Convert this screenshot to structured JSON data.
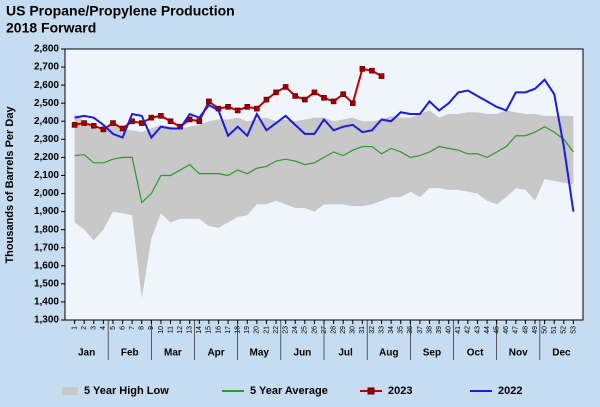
{
  "chart_data": {
    "type": "line",
    "title": "US Propane/Propylene Production",
    "subtitle": "2018 Forward",
    "y_label": "Thousands of Barrels Per Day",
    "months": [
      "Jan",
      "Feb",
      "Mar",
      "Apr",
      "May",
      "Jun",
      "Jul",
      "Aug",
      "Sep",
      "Oct",
      "Nov",
      "Dec"
    ],
    "x": [
      1,
      2,
      3,
      4,
      5,
      6,
      7,
      8,
      9,
      10,
      11,
      12,
      13,
      14,
      15,
      16,
      17,
      18,
      19,
      20,
      21,
      22,
      23,
      24,
      25,
      26,
      27,
      28,
      29,
      30,
      31,
      32,
      33,
      34,
      35,
      36,
      37,
      38,
      39,
      40,
      41,
      42,
      43,
      44,
      45,
      46,
      47,
      48,
      49,
      50,
      51,
      52,
      53
    ],
    "xlim": [
      0,
      54
    ],
    "ylim": [
      1300,
      2800
    ],
    "yticks": [
      {
        "value": 1300,
        "label": "1,300"
      },
      {
        "value": 1400,
        "label": "1,400"
      },
      {
        "value": 1500,
        "label": "1,500"
      },
      {
        "value": 1600,
        "label": "1,600"
      },
      {
        "value": 1700,
        "label": "1,700"
      },
      {
        "value": 1800,
        "label": "1,800"
      },
      {
        "value": 1900,
        "label": "1,900"
      },
      {
        "value": 2000,
        "label": "2,000"
      },
      {
        "value": 2100,
        "label": "2,100"
      },
      {
        "value": 2200,
        "label": "2,200"
      },
      {
        "value": 2300,
        "label": "2,300"
      },
      {
        "value": 2400,
        "label": "2,400"
      },
      {
        "value": 2500,
        "label": "2,500"
      },
      {
        "value": 2600,
        "label": "2,600"
      },
      {
        "value": 2700,
        "label": "2,700"
      },
      {
        "value": 2800,
        "label": "2,800"
      }
    ],
    "band": {
      "name": "5 Year High Low",
      "color": "#c8c8c8",
      "high": [
        2440,
        2400,
        2360,
        2350,
        2390,
        2350,
        2350,
        2340,
        2360,
        2380,
        2370,
        2360,
        2370,
        2380,
        2400,
        2410,
        2410,
        2420,
        2400,
        2410,
        2420,
        2400,
        2410,
        2400,
        2410,
        2420,
        2420,
        2400,
        2410,
        2420,
        2400,
        2400,
        2410,
        2430,
        2420,
        2420,
        2440,
        2460,
        2420,
        2440,
        2440,
        2450,
        2450,
        2440,
        2440,
        2460,
        2450,
        2440,
        2440,
        2430,
        2430,
        2430,
        2430
      ],
      "low": [
        1840,
        1800,
        1740,
        1800,
        1900,
        1890,
        1880,
        1420,
        1750,
        1890,
        1840,
        1860,
        1860,
        1860,
        1820,
        1810,
        1840,
        1870,
        1880,
        1940,
        1940,
        1960,
        1940,
        1920,
        1920,
        1900,
        1940,
        1940,
        1940,
        1930,
        1930,
        1940,
        1960,
        1980,
        1980,
        2010,
        1980,
        2030,
        2030,
        2020,
        2020,
        2010,
        2000,
        1960,
        1940,
        1980,
        2030,
        2020,
        1960,
        2080,
        2070,
        2060,
        2050
      ]
    },
    "series": [
      {
        "name": "5 Year Average",
        "color": "#2e9a2e",
        "values": [
          2210,
          2215,
          2170,
          2170,
          2190,
          2200,
          2200,
          1950,
          2000,
          2100,
          2100,
          2130,
          2160,
          2110,
          2110,
          2110,
          2100,
          2130,
          2110,
          2140,
          2150,
          2180,
          2190,
          2180,
          2160,
          2170,
          2200,
          2230,
          2210,
          2240,
          2260,
          2260,
          2220,
          2250,
          2230,
          2200,
          2210,
          2230,
          2260,
          2250,
          2240,
          2220,
          2220,
          2200,
          2230,
          2260,
          2320,
          2320,
          2340,
          2370,
          2340,
          2300,
          2230
        ]
      },
      {
        "name": "2023",
        "color": "#c00000",
        "marker": "square",
        "values": [
          2380,
          2390,
          2375,
          2355,
          2390,
          2360,
          2400,
          2390,
          2420,
          2430,
          2400,
          2370,
          2410,
          2400,
          2510,
          2470,
          2480,
          2460,
          2480,
          2470,
          2520,
          2560,
          2590,
          2540,
          2520,
          2560,
          2530,
          2510,
          2550,
          2500,
          2690,
          2680,
          2650,
          null,
          null,
          null,
          null,
          null,
          null,
          null,
          null,
          null,
          null,
          null,
          null,
          null,
          null,
          null,
          null,
          null,
          null,
          null,
          null
        ]
      },
      {
        "name": "2022",
        "color": "#1a1ae0",
        "values": [
          2420,
          2430,
          2420,
          2380,
          2330,
          2310,
          2440,
          2430,
          2310,
          2370,
          2360,
          2360,
          2440,
          2420,
          2490,
          2460,
          2320,
          2370,
          2320,
          2440,
          2350,
          2390,
          2430,
          2380,
          2330,
          2330,
          2410,
          2350,
          2370,
          2380,
          2340,
          2350,
          2410,
          2400,
          2450,
          2440,
          2440,
          2510,
          2460,
          2500,
          2560,
          2570,
          2540,
          2510,
          2480,
          2460,
          2560,
          2560,
          2580,
          2630,
          2550,
          2260,
          1900
        ]
      }
    ]
  }
}
